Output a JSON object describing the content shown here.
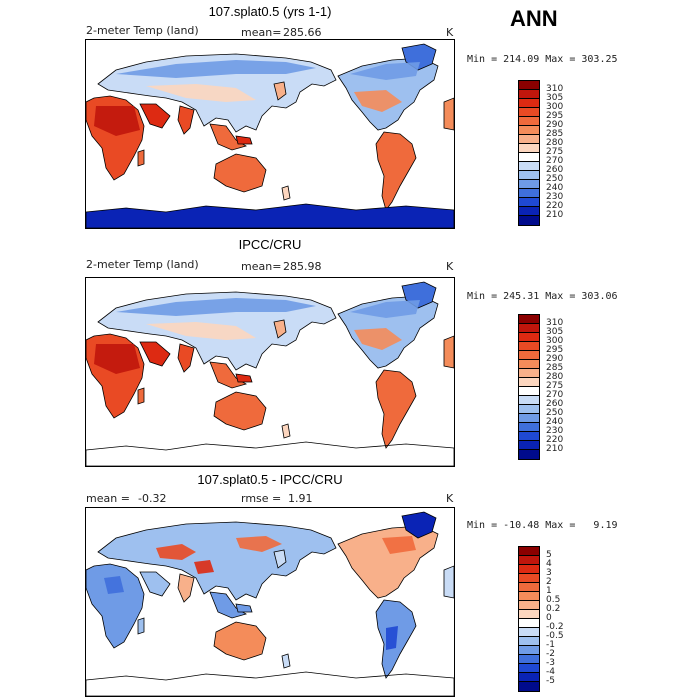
{
  "season": "ANN",
  "panels": [
    {
      "title": "107.splat0.5 (yrs 1-1)",
      "field": "2-meter Temp (land)",
      "stat1_label": "mean=",
      "stat1_value": "285.66",
      "stat2_label": "",
      "stat2_value": "",
      "units": "K",
      "minmax": "Min = 214.09 Max = 303.25",
      "antarctica": "filled",
      "scheme": "temp",
      "colorbar": {
        "labels": [
          "310",
          "305",
          "300",
          "295",
          "290",
          "285",
          "280",
          "275",
          "270",
          "260",
          "250",
          "240",
          "230",
          "220",
          "210"
        ],
        "colors": [
          "#8b0000",
          "#c0160c",
          "#dd2a12",
          "#e94a24",
          "#ef6a3c",
          "#f48c5a",
          "#f8b08a",
          "#fcd6bf",
          "#ffffff",
          "#c9dcf6",
          "#9ec0ef",
          "#6f9be6",
          "#3f6fdb",
          "#1f49d3",
          "#0a23b5",
          "#000b8c"
        ]
      }
    },
    {
      "title": "IPCC/CRU",
      "field": "2-meter Temp (land)",
      "stat1_label": "mean=",
      "stat1_value": "285.98",
      "stat2_label": "",
      "stat2_value": "",
      "units": "K",
      "minmax": "Min = 245.31 Max = 303.06",
      "antarctica": "outline",
      "scheme": "temp",
      "colorbar": {
        "labels": [
          "310",
          "305",
          "300",
          "295",
          "290",
          "285",
          "280",
          "275",
          "270",
          "260",
          "250",
          "240",
          "230",
          "220",
          "210"
        ],
        "colors": [
          "#8b0000",
          "#c0160c",
          "#dd2a12",
          "#e94a24",
          "#ef6a3c",
          "#f48c5a",
          "#f8b08a",
          "#fcd6bf",
          "#ffffff",
          "#c9dcf6",
          "#9ec0ef",
          "#6f9be6",
          "#3f6fdb",
          "#1f49d3",
          "#0a23b5",
          "#000b8c"
        ]
      }
    },
    {
      "title": "107.splat0.5 - IPCC/CRU",
      "field": "",
      "stat1_label": "mean =",
      "stat1_value": "-0.32",
      "stat2_label": "rmse =",
      "stat2_value": "1.91",
      "units": "K",
      "minmax": "Min = -10.48 Max =   9.19",
      "antarctica": "outline",
      "scheme": "diff",
      "colorbar": {
        "labels": [
          "5",
          "4",
          "3",
          "2",
          "1",
          "0.5",
          "0.2",
          "0",
          "-0.2",
          "-0.5",
          "-1",
          "-2",
          "-3",
          "-4",
          "-5"
        ],
        "colors": [
          "#8b0000",
          "#c0160c",
          "#dd2a12",
          "#e94a24",
          "#ef6a3c",
          "#f48c5a",
          "#f8b08a",
          "#fcd6bf",
          "#ffffff",
          "#c9dcf6",
          "#9ec0ef",
          "#6f9be6",
          "#3f6fdb",
          "#1f49d3",
          "#0a23b5",
          "#000b8c"
        ]
      }
    }
  ]
}
